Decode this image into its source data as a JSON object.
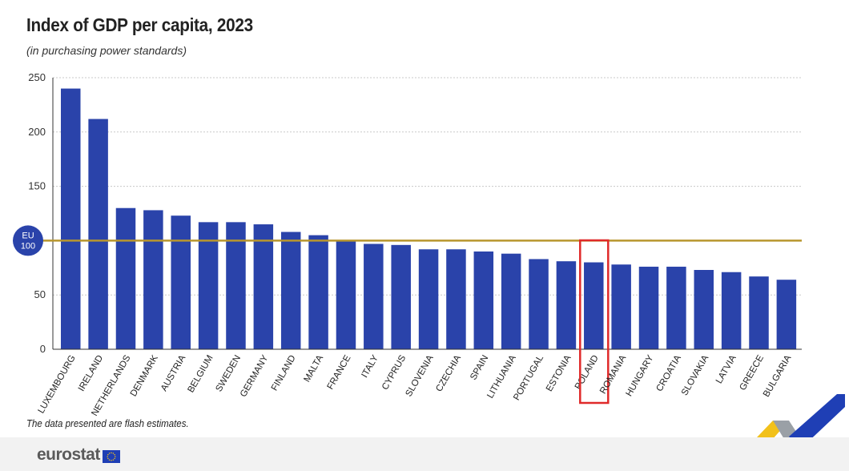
{
  "title": "Index of GDP per capita, 2023",
  "subtitle": "(in purchasing power standards)",
  "footnote": "The data presented are flash estimates.",
  "brand": {
    "name": "eurostat",
    "flag_icon": "eu-flag-icon"
  },
  "reference_line": {
    "value": 100,
    "label_top": "EU",
    "label_bottom": "100",
    "color": "#b8962e"
  },
  "highlight": {
    "category": "POLAND",
    "color": "#e02a2a"
  },
  "colors": {
    "bar": "#2a43aa",
    "badge": "#2a43aa",
    "accent_yellow": "#f2c11b",
    "accent_blue": "#1f3fb5"
  },
  "chart_data": {
    "type": "bar",
    "title": "Index of GDP per capita, 2023",
    "subtitle": "(in purchasing power standards)",
    "xlabel": "",
    "ylabel": "",
    "ylim": [
      0,
      250
    ],
    "yticks": [
      0,
      50,
      150,
      200,
      250
    ],
    "grid": true,
    "categories": [
      "LUXEMBOURG",
      "IRELAND",
      "NETHERLANDS",
      "DENMARK",
      "AUSTRIA",
      "BELGIUM",
      "SWEDEN",
      "GERMANY",
      "FINLAND",
      "MALTA",
      "FRANCE",
      "ITALY",
      "CYPRUS",
      "SLOVENIA",
      "CZECHIA",
      "SPAIN",
      "LITHUANIA",
      "PORTUGAL",
      "ESTONIA",
      "POLAND",
      "ROMANIA",
      "HUNGARY",
      "CROATIA",
      "SLOVAKIA",
      "LATVIA",
      "GREECE",
      "BULGARIA"
    ],
    "values": [
      240,
      212,
      130,
      128,
      123,
      117,
      117,
      115,
      108,
      105,
      100,
      97,
      96,
      92,
      92,
      90,
      88,
      83,
      81,
      80,
      78,
      76,
      76,
      73,
      71,
      67,
      64
    ]
  }
}
